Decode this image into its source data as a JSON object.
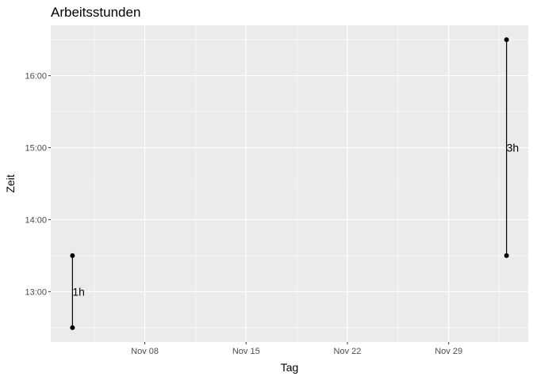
{
  "chart_data": {
    "type": "scatter",
    "title": "Arbeitsstunden",
    "xlabel": "Tag",
    "ylabel": "Zeit",
    "grid": true,
    "background": "#ebebeb",
    "grid_color": "#ffffff",
    "point_color": "#000000",
    "x_ticks": [
      {
        "value": "2023-11-08",
        "label": "Nov 08"
      },
      {
        "value": "2023-11-15",
        "label": "Nov 15"
      },
      {
        "value": "2023-11-22",
        "label": "Nov 22"
      },
      {
        "value": "2023-11-29",
        "label": "Nov 29"
      }
    ],
    "y_ticks": [
      {
        "value": "13:00",
        "label": "13:00"
      },
      {
        "value": "14:00",
        "label": "14:00"
      },
      {
        "value": "15:00",
        "label": "15:00"
      },
      {
        "value": "16:00",
        "label": "16:00"
      }
    ],
    "segments": [
      {
        "date": "2023-11-03",
        "start": "12:30",
        "end": "13:30",
        "label": "1h"
      },
      {
        "date": "2023-12-03",
        "start": "13:30",
        "end": "16:30",
        "label": "3h"
      }
    ]
  }
}
